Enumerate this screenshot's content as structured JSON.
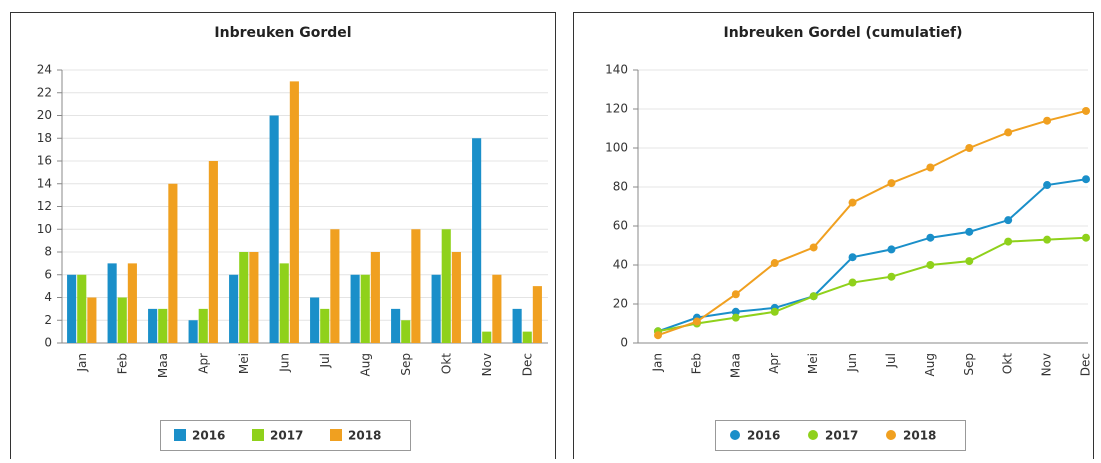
{
  "chart_data": [
    {
      "type": "bar",
      "title": "Inbreuken Gordel",
      "categories": [
        "Jan",
        "Feb",
        "Maa",
        "Apr",
        "Mei",
        "Jun",
        "Jul",
        "Aug",
        "Sep",
        "Okt",
        "Nov",
        "Dec"
      ],
      "series": [
        {
          "name": "2016",
          "color": "#1a8fc9",
          "values": [
            6,
            7,
            3,
            2,
            6,
            20,
            4,
            6,
            3,
            6,
            18,
            3
          ]
        },
        {
          "name": "2017",
          "color": "#8fd11b",
          "values": [
            6,
            4,
            3,
            3,
            8,
            7,
            3,
            6,
            2,
            10,
            1,
            1
          ]
        },
        {
          "name": "2018",
          "color": "#f0a020",
          "values": [
            4,
            7,
            14,
            16,
            8,
            23,
            10,
            8,
            10,
            8,
            6,
            5
          ]
        }
      ],
      "ylim": [
        0,
        24
      ],
      "yticks": [
        0,
        2,
        4,
        6,
        8,
        10,
        12,
        14,
        16,
        18,
        20,
        22,
        24
      ],
      "grid": true
    },
    {
      "type": "line",
      "title": "Inbreuken Gordel (cumulatief)",
      "categories": [
        "Jan",
        "Feb",
        "Maa",
        "Apr",
        "Mei",
        "Jun",
        "Jul",
        "Aug",
        "Sep",
        "Okt",
        "Nov",
        "Dec"
      ],
      "series": [
        {
          "name": "2016",
          "color": "#1a8fc9",
          "values": [
            6,
            13,
            16,
            18,
            24,
            44,
            48,
            54,
            57,
            63,
            81,
            84
          ]
        },
        {
          "name": "2017",
          "color": "#8fd11b",
          "values": [
            6,
            10,
            13,
            16,
            24,
            31,
            34,
            40,
            42,
            52,
            53,
            54
          ]
        },
        {
          "name": "2018",
          "color": "#f0a020",
          "values": [
            4,
            11,
            25,
            41,
            49,
            72,
            82,
            90,
            100,
            108,
            114,
            119
          ]
        }
      ],
      "ylim": [
        0,
        140
      ],
      "yticks": [
        0,
        20,
        40,
        60,
        80,
        100,
        120,
        140
      ],
      "grid": true
    }
  ]
}
